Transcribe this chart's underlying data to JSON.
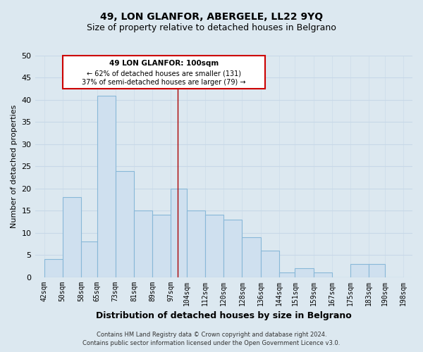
{
  "title": "49, LON GLANFOR, ABERGELE, LL22 9YQ",
  "subtitle": "Size of property relative to detached houses in Belgrano",
  "xlabel": "Distribution of detached houses by size in Belgrano",
  "ylabel": "Number of detached properties",
  "footer_line1": "Contains HM Land Registry data © Crown copyright and database right 2024.",
  "footer_line2": "Contains public sector information licensed under the Open Government Licence v3.0.",
  "annotation_line1": "49 LON GLANFOR: 100sqm",
  "annotation_line2": "← 62% of detached houses are smaller (131)",
  "annotation_line3": "37% of semi-detached houses are larger (79) →",
  "bar_color": "#cfe0ef",
  "bar_edge_color": "#88b8d8",
  "bar_left_edges": [
    42,
    50,
    58,
    65,
    73,
    81,
    89,
    97,
    104,
    112,
    120,
    128,
    136,
    144,
    151,
    159,
    167,
    175,
    183,
    190
  ],
  "bar_widths": [
    8,
    8,
    7,
    8,
    8,
    8,
    8,
    7,
    8,
    8,
    8,
    8,
    8,
    7,
    8,
    8,
    8,
    8,
    7,
    8
  ],
  "bar_heights": [
    4,
    18,
    8,
    41,
    24,
    15,
    14,
    20,
    15,
    14,
    13,
    9,
    6,
    1,
    2,
    1,
    0,
    3,
    3,
    0
  ],
  "tick_labels": [
    "42sqm",
    "50sqm",
    "58sqm",
    "65sqm",
    "73sqm",
    "81sqm",
    "89sqm",
    "97sqm",
    "104sqm",
    "112sqm",
    "120sqm",
    "128sqm",
    "136sqm",
    "144sqm",
    "151sqm",
    "159sqm",
    "167sqm",
    "175sqm",
    "183sqm",
    "190sqm",
    "198sqm"
  ],
  "tick_positions": [
    42,
    50,
    58,
    65,
    73,
    81,
    89,
    97,
    104,
    112,
    120,
    128,
    136,
    144,
    151,
    159,
    167,
    175,
    183,
    190,
    198
  ],
  "yticks": [
    0,
    5,
    10,
    15,
    20,
    25,
    30,
    35,
    40,
    45,
    50
  ],
  "ylim": [
    0,
    50
  ],
  "xlim": [
    38,
    202
  ],
  "property_size": 100,
  "vline_color": "#aa0000",
  "annotation_box_edge_color": "#cc0000",
  "grid_color": "#c8d8e8",
  "background_color": "#dce8f0",
  "title_fontsize": 10,
  "subtitle_fontsize": 9,
  "axis_label_fontsize": 8,
  "tick_fontsize": 7,
  "footer_fontsize": 6
}
